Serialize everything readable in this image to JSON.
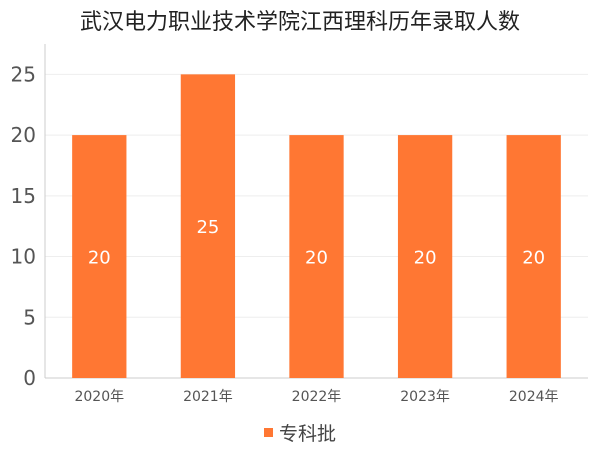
{
  "chart_data": {
    "type": "bar",
    "title": "武汉电力职业技术学院江西理科历年录取人数",
    "categories": [
      "2020年",
      "2021年",
      "2022年",
      "2023年",
      "2024年"
    ],
    "series": [
      {
        "name": "专科批",
        "values": [
          20,
          25,
          20,
          20,
          20
        ],
        "color": "#ff7733"
      }
    ],
    "yticks": [
      0,
      5,
      10,
      15,
      20,
      25
    ],
    "ylim": [
      0,
      27.5
    ],
    "grid": true,
    "legend_position": "bottom"
  }
}
